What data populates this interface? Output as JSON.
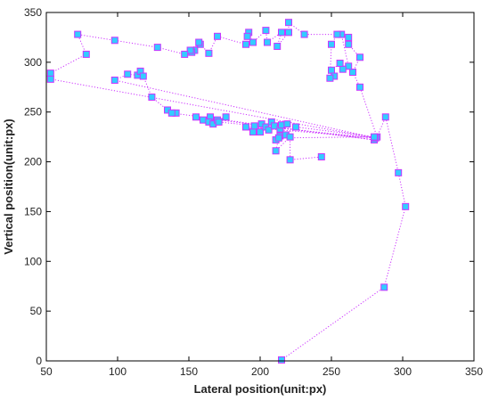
{
  "chart_data": {
    "type": "scatter",
    "title": "",
    "xlabel": "Lateral position(unit:px)",
    "ylabel": "Vertical position(unit:px)",
    "xlim": [
      50,
      350
    ],
    "ylim": [
      0,
      350
    ],
    "x_ticks": [
      "50",
      "100",
      "150",
      "200",
      "250",
      "300",
      "350"
    ],
    "y_ticks": [
      "0",
      "50",
      "100",
      "150",
      "200",
      "250",
      "300",
      "350"
    ],
    "grid": false,
    "legend": "none",
    "colors": {
      "marker_fill": "#33ccff",
      "marker_edge": "#cc33ff",
      "line": "#cc33ff",
      "axes": "#000000"
    },
    "series": [
      {
        "marker": "square",
        "connected": true,
        "points": [
          [
            215,
            1
          ],
          [
            287,
            74
          ],
          [
            302,
            155
          ],
          [
            297,
            189
          ],
          [
            288,
            245
          ],
          [
            282,
            225
          ],
          [
            270,
            275
          ],
          [
            265,
            290
          ],
          [
            270,
            305
          ],
          [
            262,
            318
          ],
          [
            262,
            325
          ],
          [
            257,
            328
          ],
          [
            262,
            296
          ],
          [
            258,
            293
          ],
          [
            256,
            299
          ],
          [
            250,
            292
          ],
          [
            252,
            286
          ],
          [
            249,
            284
          ],
          [
            250,
            318
          ],
          [
            254,
            328
          ],
          [
            231,
            328
          ],
          [
            220,
            340
          ],
          [
            220,
            330
          ],
          [
            212,
            316
          ],
          [
            215,
            330
          ],
          [
            205,
            320
          ],
          [
            204,
            332
          ],
          [
            195,
            320
          ],
          [
            192,
            330
          ],
          [
            191,
            326
          ],
          [
            190,
            318
          ],
          [
            170,
            326
          ],
          [
            164,
            309
          ],
          [
            158,
            318
          ],
          [
            154,
            312
          ],
          [
            152,
            310
          ],
          [
            157,
            320
          ],
          [
            151,
            312
          ],
          [
            147,
            308
          ],
          [
            128,
            315
          ],
          [
            98,
            322
          ],
          [
            72,
            328
          ],
          [
            78,
            308
          ],
          [
            53,
            289
          ],
          [
            53,
            283
          ],
          [
            281,
            224
          ],
          [
            98,
            282
          ],
          [
            107,
            288
          ],
          [
            114,
            287
          ],
          [
            116,
            291
          ],
          [
            118,
            286
          ],
          [
            124,
            265
          ],
          [
            135,
            252
          ],
          [
            141,
            249
          ],
          [
            138,
            249
          ],
          [
            280,
            222
          ],
          [
            155,
            245
          ],
          [
            160,
            242
          ],
          [
            165,
            245
          ],
          [
            164,
            240
          ],
          [
            167,
            238
          ],
          [
            170,
            242
          ],
          [
            176,
            245
          ],
          [
            171,
            240
          ],
          [
            280,
            224
          ],
          [
            190,
            235
          ],
          [
            195,
            230
          ],
          [
            196,
            236
          ],
          [
            200,
            230
          ],
          [
            201,
            238
          ],
          [
            204,
            235
          ],
          [
            208,
            240
          ],
          [
            206,
            232
          ],
          [
            210,
            236
          ],
          [
            214,
            233
          ],
          [
            215,
            237
          ],
          [
            219,
            238
          ],
          [
            214,
            226
          ],
          [
            211,
            222
          ],
          [
            218,
            227
          ],
          [
            225,
            235
          ],
          [
            280,
            225
          ],
          [
            213,
            224
          ],
          [
            211,
            211
          ],
          [
            221,
            225
          ],
          [
            221,
            202
          ],
          [
            243,
            205
          ]
        ]
      }
    ]
  }
}
